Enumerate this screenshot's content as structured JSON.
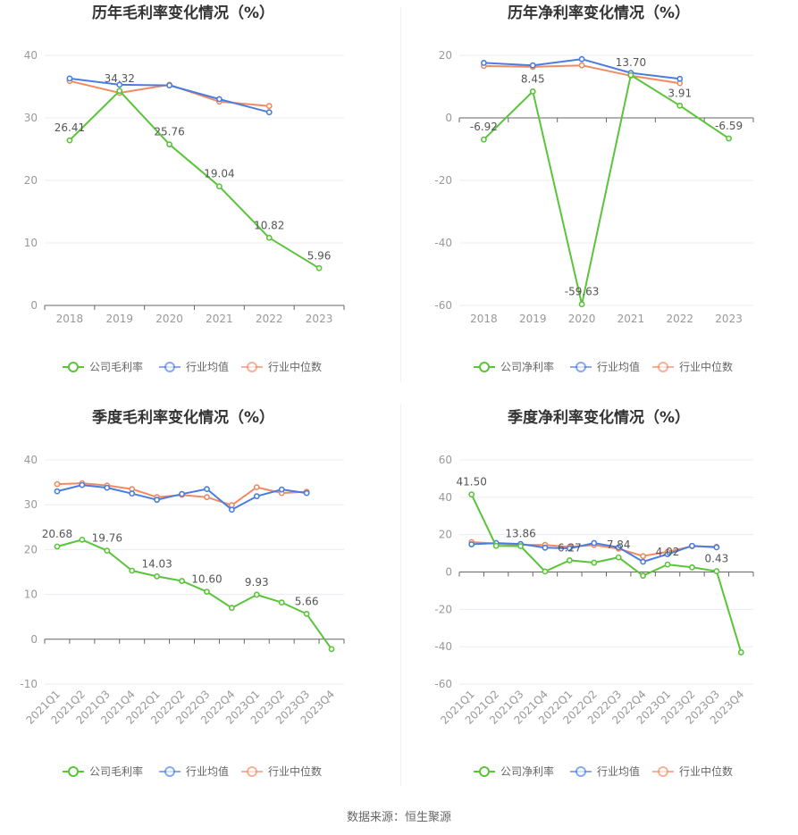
{
  "colors": {
    "company": "#5ac43a",
    "avg": "#4a7de0",
    "median": "#f08a63",
    "grid": "#e8ecf3",
    "axis": "#666666"
  },
  "legend": {
    "company_gross": "公司毛利率",
    "company_net": "公司净利率",
    "avg": "行业均值",
    "median": "行业中位数"
  },
  "footer": "数据来源：恒生聚源",
  "chart_data": [
    {
      "type": "line",
      "title": "历年毛利率变化情况（%）",
      "categories": [
        "2018",
        "2019",
        "2020",
        "2021",
        "2022",
        "2023"
      ],
      "ylim": [
        0,
        40
      ],
      "yticks": [
        0,
        10,
        20,
        30,
        40
      ],
      "series": [
        {
          "name": "公司毛利率",
          "values": [
            26.41,
            34.32,
            25.76,
            19.04,
            10.82,
            5.96
          ],
          "labels": [
            "26.41",
            "34.32",
            "25.76",
            "19.04",
            "10.82",
            "5.96"
          ]
        },
        {
          "name": "行业均值",
          "values": [
            36.3,
            35.3,
            35.2,
            33.0,
            30.9,
            null
          ]
        },
        {
          "name": "行业中位数",
          "values": [
            35.9,
            34.0,
            35.3,
            32.6,
            31.9,
            null
          ]
        }
      ]
    },
    {
      "type": "line",
      "title": "历年净利率变化情况（%）",
      "categories": [
        "2018",
        "2019",
        "2020",
        "2021",
        "2022",
        "2023"
      ],
      "ylim": [
        -60,
        20
      ],
      "yticks": [
        -60,
        -40,
        -20,
        0,
        20
      ],
      "series": [
        {
          "name": "公司净利率",
          "values": [
            -6.92,
            8.45,
            -59.63,
            13.7,
            3.91,
            -6.59
          ],
          "labels": [
            "-6.92",
            "8.45",
            "-59.63",
            "13.70",
            "3.91",
            "-6.59"
          ]
        },
        {
          "name": "行业均值",
          "values": [
            17.6,
            16.8,
            18.8,
            14.4,
            12.5,
            null
          ]
        },
        {
          "name": "行业中位数",
          "values": [
            16.6,
            16.3,
            16.8,
            13.5,
            11.1,
            null
          ]
        }
      ]
    },
    {
      "type": "line",
      "title": "季度毛利率变化情况（%）",
      "categories": [
        "2021Q1",
        "2021Q2",
        "2021Q3",
        "2021Q4",
        "2022Q1",
        "2022Q2",
        "2022Q3",
        "2022Q4",
        "2023Q1",
        "2023Q2",
        "2023Q3",
        "2023Q4"
      ],
      "ylim": [
        -10,
        40
      ],
      "yticks": [
        -10,
        0,
        10,
        20,
        30,
        40
      ],
      "series": [
        {
          "name": "公司毛利率",
          "values": [
            20.68,
            22.2,
            19.76,
            15.3,
            14.03,
            13.0,
            10.6,
            7.0,
            9.93,
            8.2,
            5.66,
            -2.2
          ],
          "labels": [
            "20.68",
            "",
            "19.76",
            "",
            "14.03",
            "",
            "10.60",
            "",
            "9.93",
            "",
            "5.66",
            ""
          ]
        },
        {
          "name": "行业均值",
          "values": [
            33.0,
            34.4,
            33.8,
            32.5,
            31.1,
            32.4,
            33.5,
            28.9,
            31.9,
            33.4,
            32.6,
            null
          ]
        },
        {
          "name": "行业中位数",
          "values": [
            34.6,
            34.8,
            34.3,
            33.5,
            31.7,
            32.2,
            31.7,
            29.9,
            33.9,
            32.6,
            32.9,
            null
          ]
        }
      ]
    },
    {
      "type": "line",
      "title": "季度净利率变化情况（%）",
      "categories": [
        "2021Q1",
        "2021Q2",
        "2021Q3",
        "2021Q4",
        "2022Q1",
        "2022Q2",
        "2022Q3",
        "2022Q4",
        "2023Q1",
        "2023Q2",
        "2023Q3",
        "2023Q4"
      ],
      "ylim": [
        -60,
        60
      ],
      "yticks": [
        -60,
        -40,
        -20,
        0,
        20,
        40,
        60
      ],
      "series": [
        {
          "name": "公司净利率",
          "values": [
            41.5,
            14.0,
            13.86,
            0.3,
            6.27,
            5.0,
            7.84,
            -2.0,
            4.02,
            2.5,
            0.43,
            -43.0
          ],
          "labels": [
            "41.50",
            "",
            "13.86",
            "",
            "6.27",
            "",
            "7.84",
            "",
            "4.02",
            "",
            "0.43",
            ""
          ]
        },
        {
          "name": "行业均值",
          "values": [
            14.8,
            15.5,
            15.0,
            13.0,
            12.6,
            15.5,
            13.2,
            5.5,
            9.5,
            14.0,
            13.2,
            null
          ]
        },
        {
          "name": "行业中位数",
          "values": [
            16.0,
            15.2,
            14.6,
            14.5,
            13.5,
            14.4,
            12.5,
            8.5,
            10.8,
            13.8,
            13.5,
            null
          ]
        }
      ]
    }
  ]
}
